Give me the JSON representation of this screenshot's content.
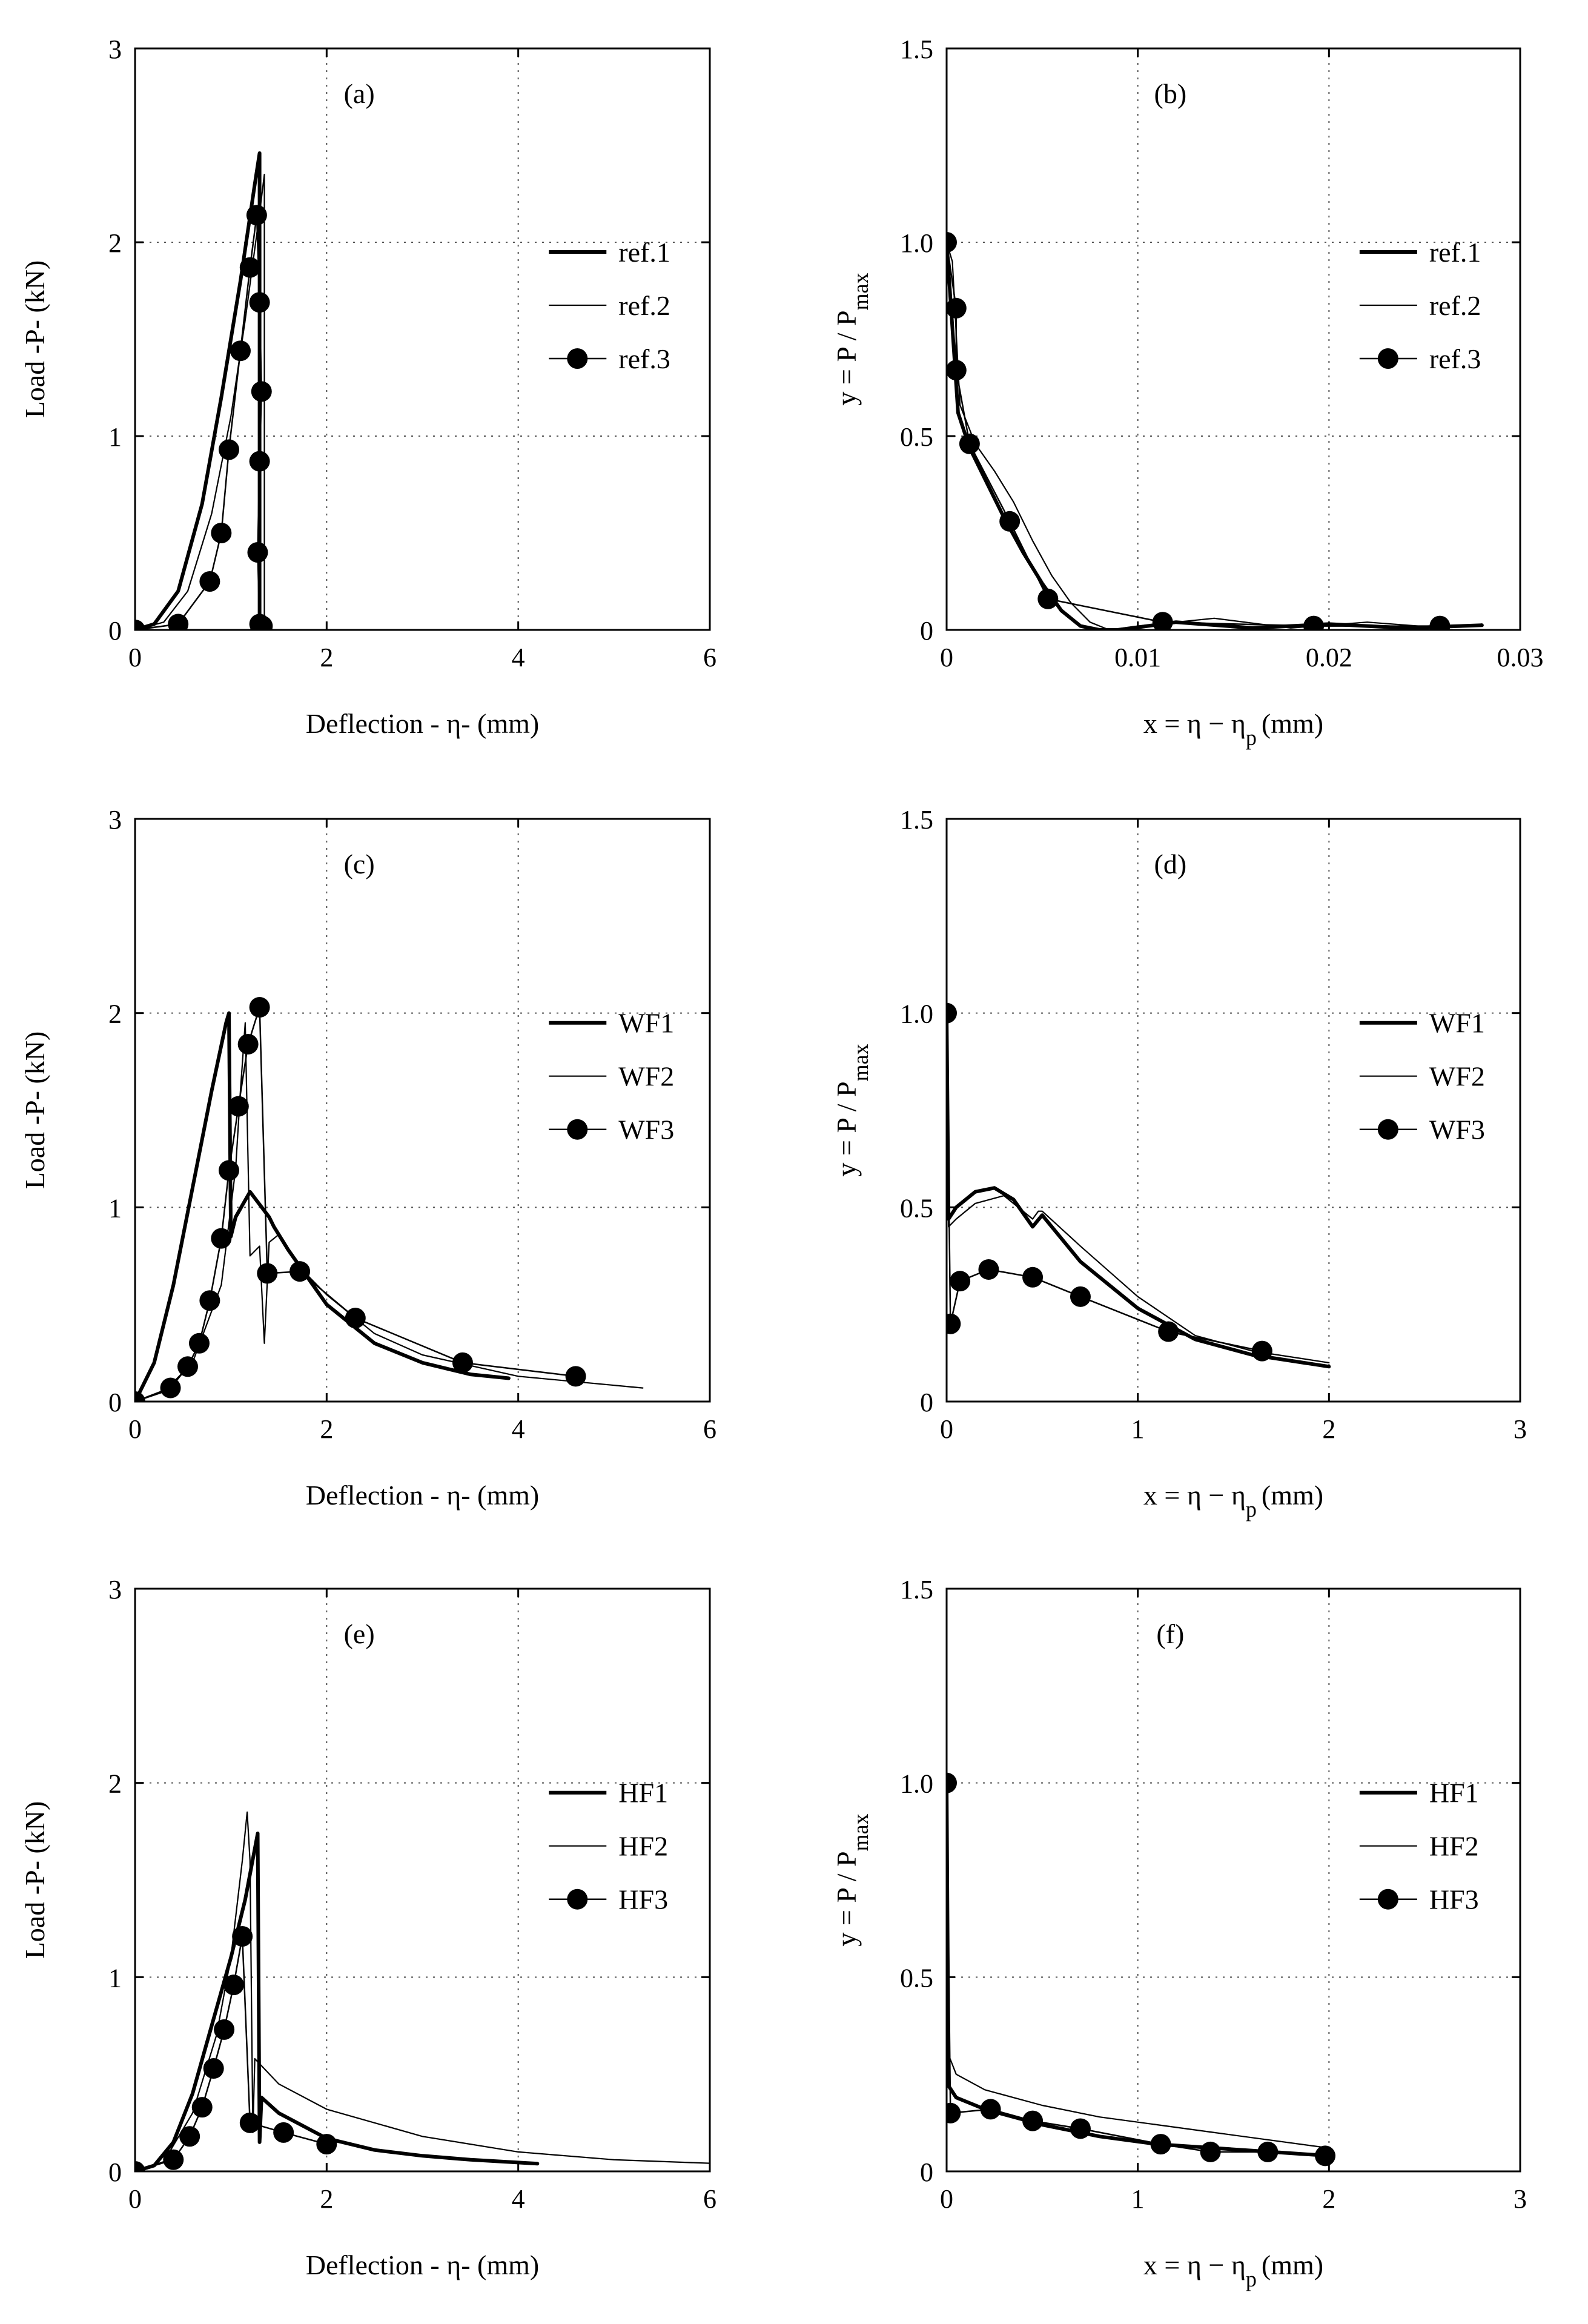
{
  "figure_caption": "",
  "chart_data": [
    {
      "id": "a",
      "type": "line",
      "panel_label": "(a)",
      "xlabel": "Deflection - η-    (mm)",
      "ylabel": "Load -P-   (kN)",
      "xlim": [
        0,
        6
      ],
      "ylim": [
        0,
        3
      ],
      "xticks": [
        0,
        2,
        4,
        6
      ],
      "yticks": [
        0,
        1,
        2,
        3
      ],
      "xtick_labels": [
        "0",
        "2",
        "4",
        "6"
      ],
      "ytick_labels": [
        "0",
        "1",
        "2",
        "3"
      ],
      "grid": true,
      "legend_position": "right-middle",
      "series": [
        {
          "name": "ref.1",
          "style": "thick",
          "x": [
            0,
            0.2,
            0.45,
            0.7,
            0.9,
            1.1,
            1.25,
            1.3,
            1.3
          ],
          "y": [
            0,
            0.03,
            0.2,
            0.65,
            1.2,
            1.8,
            2.3,
            2.46,
            0
          ]
        },
        {
          "name": "ref.2",
          "style": "thin",
          "x": [
            0,
            0.3,
            0.55,
            0.8,
            1.0,
            1.15,
            1.3,
            1.35,
            1.35
          ],
          "y": [
            0,
            0.04,
            0.2,
            0.6,
            1.1,
            1.6,
            2.15,
            2.35,
            0
          ]
        },
        {
          "name": "ref.3",
          "style": "marker",
          "x": [
            0,
            0.45,
            0.78,
            0.9,
            0.98,
            1.1,
            1.2,
            1.27,
            1.3,
            1.32,
            1.3,
            1.28,
            1.3,
            1.33
          ],
          "y": [
            0,
            0.03,
            0.25,
            0.5,
            0.93,
            1.44,
            1.87,
            2.14,
            1.69,
            1.23,
            0.87,
            0.4,
            0.03,
            0.02
          ]
        }
      ]
    },
    {
      "id": "b",
      "type": "line",
      "panel_label": "(b)",
      "xlabel": "x  =   η   −   η",
      "xlabel_sub": "p",
      "xlabel_unit": "(mm)",
      "ylabel": "y = P / P",
      "ylabel_sub": "max",
      "xlim": [
        0,
        0.03
      ],
      "ylim": [
        0,
        1.5
      ],
      "xticks": [
        0,
        0.01,
        0.02,
        0.03
      ],
      "yticks": [
        0,
        0.5,
        1.0,
        1.5
      ],
      "xtick_labels": [
        "0",
        "0.01",
        "0.02",
        "0.03"
      ],
      "ytick_labels": [
        "0",
        "0.5",
        "1.0",
        "1.5"
      ],
      "grid": true,
      "legend_position": "right-middle",
      "series": [
        {
          "name": "ref.1",
          "style": "thick",
          "x": [
            0,
            0.0003,
            0.0006,
            0.0012,
            0.002,
            0.003,
            0.004,
            0.005,
            0.006,
            0.007,
            0.008,
            0.009,
            0.012,
            0.016,
            0.02,
            0.024,
            0.028
          ],
          "y": [
            1.0,
            0.78,
            0.56,
            0.47,
            0.39,
            0.29,
            0.2,
            0.12,
            0.05,
            0.01,
            0.0,
            0.0,
            0.02,
            0.005,
            0.015,
            0.005,
            0.012
          ]
        },
        {
          "name": "ref.2",
          "style": "thin",
          "x": [
            0,
            0.0003,
            0.0007,
            0.0015,
            0.0025,
            0.0035,
            0.0045,
            0.0055,
            0.0065,
            0.0075,
            0.0085,
            0.01,
            0.014,
            0.018,
            0.022,
            0.026,
            0.028
          ],
          "y": [
            1.0,
            0.95,
            0.58,
            0.48,
            0.41,
            0.33,
            0.23,
            0.14,
            0.07,
            0.02,
            0.0,
            0.01,
            0.03,
            0.005,
            0.02,
            0.005,
            0.015
          ]
        },
        {
          "name": "ref.3",
          "style": "marker",
          "x": [
            0,
            0.0005,
            0.0005,
            0.0012,
            0.0033,
            0.0053,
            0.0113,
            0.0192,
            0.0258
          ],
          "y": [
            1.0,
            0.83,
            0.67,
            0.48,
            0.28,
            0.08,
            0.02,
            0.01,
            0.01
          ]
        }
      ]
    },
    {
      "id": "c",
      "type": "line",
      "panel_label": "(c)",
      "xlabel": "Deflection - η-    (mm)",
      "ylabel": "Load -P-   (kN)",
      "xlim": [
        0,
        6
      ],
      "ylim": [
        0,
        3
      ],
      "xticks": [
        0,
        2,
        4,
        6
      ],
      "yticks": [
        0,
        1,
        2,
        3
      ],
      "xtick_labels": [
        "0",
        "2",
        "4",
        "6"
      ],
      "ytick_labels": [
        "0",
        "1",
        "2",
        "3"
      ],
      "grid": true,
      "legend_position": "right-middle",
      "series": [
        {
          "name": "WF1",
          "style": "thick",
          "x": [
            0,
            0.2,
            0.4,
            0.6,
            0.8,
            0.95,
            0.98,
            1.0,
            1.05,
            1.2,
            1.4,
            1.45,
            1.6,
            2.0,
            2.5,
            3.0,
            3.5,
            3.9
          ],
          "y": [
            0,
            0.2,
            0.6,
            1.1,
            1.6,
            1.95,
            2.0,
            0.85,
            0.95,
            1.08,
            0.95,
            0.9,
            0.78,
            0.5,
            0.3,
            0.2,
            0.14,
            0.12
          ]
        },
        {
          "name": "WF2",
          "style": "thin",
          "x": [
            0,
            0.3,
            0.6,
            0.9,
            1.05,
            1.1,
            1.15,
            1.2,
            1.3,
            1.35,
            1.4,
            1.5,
            1.7,
            2.0,
            2.5,
            3.0,
            4.0,
            5.3
          ],
          "y": [
            0,
            0.05,
            0.2,
            0.6,
            1.2,
            1.6,
            1.95,
            0.75,
            0.8,
            0.3,
            0.82,
            0.86,
            0.7,
            0.55,
            0.35,
            0.24,
            0.13,
            0.07
          ]
        },
        {
          "name": "WF3",
          "style": "marker",
          "x": [
            0,
            0.37,
            0.55,
            0.67,
            0.78,
            0.9,
            0.98,
            1.08,
            1.18,
            1.3,
            1.38,
            1.72,
            2.3,
            3.42,
            4.6
          ],
          "y": [
            0,
            0.07,
            0.18,
            0.3,
            0.52,
            0.84,
            1.19,
            1.52,
            1.84,
            2.03,
            0.66,
            0.67,
            0.43,
            0.2,
            0.13
          ]
        }
      ]
    },
    {
      "id": "d",
      "type": "line",
      "panel_label": "(d)",
      "xlabel": "x  =   η   −   η",
      "xlabel_sub": "p",
      "xlabel_unit": "(mm)",
      "ylabel": "y = P / P",
      "ylabel_sub": "max",
      "xlim": [
        0,
        3
      ],
      "ylim": [
        0,
        1.5
      ],
      "xticks": [
        0,
        1,
        2,
        3
      ],
      "yticks": [
        0,
        0.5,
        1.0,
        1.5
      ],
      "xtick_labels": [
        "0",
        "1",
        "2",
        "3"
      ],
      "ytick_labels": [
        "0",
        "0.5",
        "1.0",
        "1.5"
      ],
      "grid": true,
      "legend_position": "right-middle",
      "series": [
        {
          "name": "WF1",
          "style": "thick",
          "x": [
            0,
            0.01,
            0.05,
            0.15,
            0.25,
            0.35,
            0.45,
            0.5,
            0.7,
            1.0,
            1.3,
            1.6,
            2.0
          ],
          "y": [
            1.0,
            0.47,
            0.5,
            0.54,
            0.55,
            0.52,
            0.45,
            0.48,
            0.36,
            0.24,
            0.16,
            0.12,
            0.09
          ]
        },
        {
          "name": "WF2",
          "style": "thin",
          "x": [
            0,
            0.01,
            0.05,
            0.15,
            0.3,
            0.45,
            0.48,
            0.5,
            0.7,
            1.0,
            1.3,
            1.6,
            2.0
          ],
          "y": [
            1.0,
            0.45,
            0.47,
            0.51,
            0.53,
            0.47,
            0.49,
            0.49,
            0.4,
            0.27,
            0.17,
            0.13,
            0.1
          ]
        },
        {
          "name": "WF3",
          "style": "marker",
          "x": [
            0,
            0.02,
            0.07,
            0.22,
            0.45,
            0.7,
            1.16,
            1.65
          ],
          "y": [
            1.0,
            0.2,
            0.31,
            0.34,
            0.32,
            0.27,
            0.18,
            0.13
          ]
        }
      ]
    },
    {
      "id": "e",
      "type": "line",
      "panel_label": "(e)",
      "xlabel": "Deflection - η-    (mm)",
      "ylabel": "Load -P-   (kN)",
      "xlim": [
        0,
        6
      ],
      "ylim": [
        0,
        3
      ],
      "xticks": [
        0,
        2,
        4,
        6
      ],
      "yticks": [
        0,
        1,
        2,
        3
      ],
      "xtick_labels": [
        "0",
        "2",
        "4",
        "6"
      ],
      "ytick_labels": [
        "0",
        "1",
        "2",
        "3"
      ],
      "grid": true,
      "legend_position": "right-middle",
      "series": [
        {
          "name": "HF1",
          "style": "thick",
          "x": [
            0,
            0.2,
            0.4,
            0.6,
            0.8,
            1.0,
            1.15,
            1.28,
            1.3,
            1.32,
            1.5,
            2.0,
            2.5,
            3.0,
            3.5,
            4.2
          ],
          "y": [
            0,
            0.03,
            0.15,
            0.4,
            0.75,
            1.1,
            1.4,
            1.74,
            0.15,
            0.38,
            0.3,
            0.17,
            0.11,
            0.08,
            0.06,
            0.04
          ]
        },
        {
          "name": "HF2",
          "style": "thin",
          "x": [
            0,
            0.3,
            0.6,
            0.85,
            1.0,
            1.12,
            1.17,
            1.2,
            1.23,
            1.25,
            1.5,
            2.0,
            3.0,
            4.0,
            5.0,
            6.1
          ],
          "y": [
            0,
            0.05,
            0.3,
            0.7,
            1.1,
            1.6,
            1.85,
            1.6,
            0.2,
            0.58,
            0.45,
            0.32,
            0.18,
            0.1,
            0.06,
            0.04
          ]
        },
        {
          "name": "HF3",
          "style": "marker",
          "x": [
            0,
            0.4,
            0.57,
            0.7,
            0.82,
            0.93,
            1.03,
            1.12,
            1.2,
            1.55,
            2.0
          ],
          "y": [
            0,
            0.06,
            0.18,
            0.33,
            0.53,
            0.73,
            0.96,
            1.21,
            0.25,
            0.2,
            0.14
          ]
        }
      ]
    },
    {
      "id": "f",
      "type": "line",
      "panel_label": "(f)",
      "xlabel": "x  =   η   −   η",
      "xlabel_sub": "p",
      "xlabel_unit": "(mm)",
      "ylabel": "y = P / P",
      "ylabel_sub": "max",
      "xlim": [
        0,
        3
      ],
      "ylim": [
        0,
        1.5
      ],
      "xticks": [
        0,
        1,
        2,
        3
      ],
      "yticks": [
        0,
        0.5,
        1.0,
        1.5
      ],
      "xtick_labels": [
        "0",
        "1",
        "2",
        "3"
      ],
      "ytick_labels": [
        "0",
        "0.5",
        "1.0",
        "1.5"
      ],
      "grid": true,
      "legend_position": "right-middle",
      "series": [
        {
          "name": "HF1",
          "style": "thick",
          "x": [
            0,
            0.01,
            0.05,
            0.2,
            0.5,
            0.8,
            1.1,
            1.4,
            1.7,
            2.0
          ],
          "y": [
            1.0,
            0.22,
            0.19,
            0.16,
            0.12,
            0.09,
            0.07,
            0.06,
            0.05,
            0.04
          ]
        },
        {
          "name": "HF2",
          "style": "thin",
          "x": [
            0,
            0.01,
            0.05,
            0.2,
            0.5,
            0.8,
            1.1,
            1.4,
            1.7,
            2.0
          ],
          "y": [
            1.0,
            0.3,
            0.25,
            0.21,
            0.17,
            0.14,
            0.12,
            0.1,
            0.08,
            0.06
          ]
        },
        {
          "name": "HF3",
          "style": "marker",
          "x": [
            0,
            0.02,
            0.23,
            0.45,
            0.7,
            1.12,
            1.38,
            1.68,
            1.98
          ],
          "y": [
            1.0,
            0.15,
            0.16,
            0.13,
            0.11,
            0.07,
            0.05,
            0.05,
            0.04
          ]
        }
      ]
    }
  ]
}
